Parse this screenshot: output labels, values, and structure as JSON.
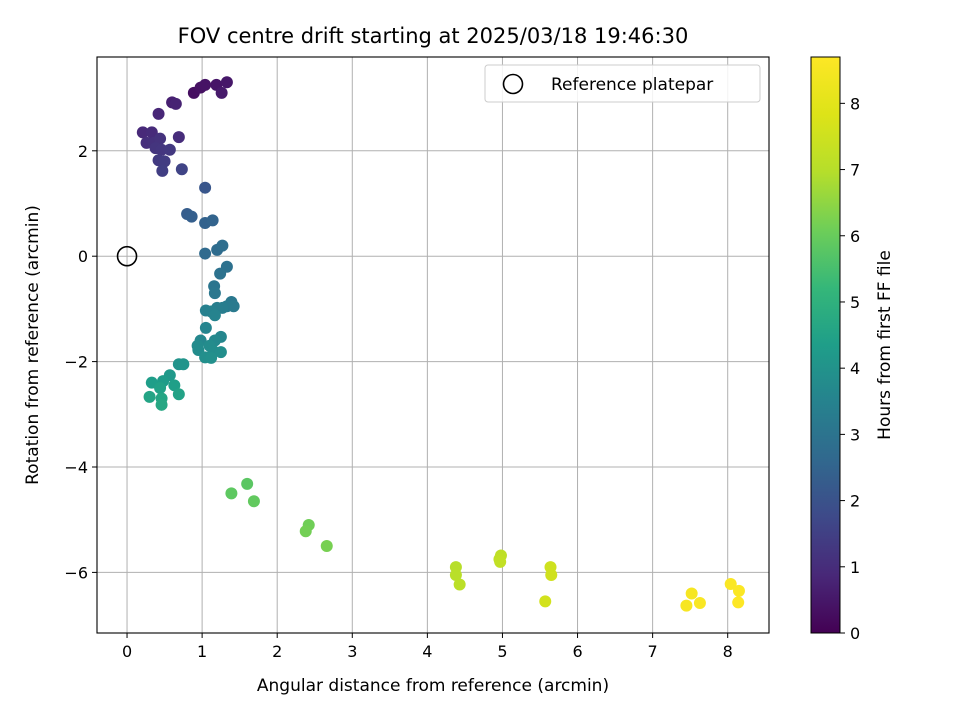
{
  "chart_data": {
    "type": "scatter",
    "title": "FOV centre drift starting at 2025/03/18 19:46:30",
    "xlabel": "Angular distance from reference (arcmin)",
    "ylabel": "Rotation from reference (arcmin)",
    "xlim": [
      -0.4,
      8.55
    ],
    "ylim": [
      -7.15,
      3.78
    ],
    "xticks": [
      0,
      1,
      2,
      3,
      4,
      5,
      6,
      7,
      8
    ],
    "yticks": [
      -6,
      -4,
      -2,
      0,
      2
    ],
    "x_tick_labels": [
      "0",
      "1",
      "2",
      "3",
      "4",
      "5",
      "6",
      "7",
      "8"
    ],
    "y_tick_labels": [
      "−6",
      "−4",
      "−2",
      "0",
      "2"
    ],
    "grid": true,
    "legend": {
      "placement": "upper-right",
      "entries": [
        "Reference platepar"
      ]
    },
    "reference_point": {
      "label": "Reference platepar",
      "x": 0,
      "y": 0
    },
    "colorbar": {
      "label": "Hours from first FF file",
      "colormap": "viridis",
      "range": [
        0,
        8.7
      ],
      "ticks": [
        0,
        1,
        2,
        3,
        4,
        5,
        6,
        7,
        8
      ],
      "tick_labels": [
        "0",
        "1",
        "2",
        "3",
        "4",
        "5",
        "6",
        "7",
        "8"
      ]
    },
    "points": [
      {
        "x": 0.89,
        "y": 3.1,
        "h": 0.3
      },
      {
        "x": 0.98,
        "y": 3.2,
        "h": 0.35
      },
      {
        "x": 1.04,
        "y": 3.25,
        "h": 0.4
      },
      {
        "x": 1.19,
        "y": 3.25,
        "h": 0.45
      },
      {
        "x": 1.33,
        "y": 3.3,
        "h": 0.5
      },
      {
        "x": 1.26,
        "y": 3.1,
        "h": 0.55
      },
      {
        "x": 0.6,
        "y": 2.92,
        "h": 0.7
      },
      {
        "x": 0.65,
        "y": 2.89,
        "h": 0.75
      },
      {
        "x": 0.42,
        "y": 2.7,
        "h": 0.85
      },
      {
        "x": 0.21,
        "y": 2.35,
        "h": 0.9
      },
      {
        "x": 0.33,
        "y": 2.35,
        "h": 0.95
      },
      {
        "x": 0.69,
        "y": 2.26,
        "h": 1.0
      },
      {
        "x": 0.26,
        "y": 2.15,
        "h": 1.05
      },
      {
        "x": 0.35,
        "y": 2.15,
        "h": 1.1
      },
      {
        "x": 0.44,
        "y": 2.23,
        "h": 1.15
      },
      {
        "x": 0.38,
        "y": 2.05,
        "h": 1.2
      },
      {
        "x": 0.46,
        "y": 2.02,
        "h": 1.25
      },
      {
        "x": 0.57,
        "y": 2.02,
        "h": 1.3
      },
      {
        "x": 0.42,
        "y": 1.82,
        "h": 1.35
      },
      {
        "x": 0.5,
        "y": 1.8,
        "h": 1.4
      },
      {
        "x": 0.47,
        "y": 1.62,
        "h": 1.45
      },
      {
        "x": 0.73,
        "y": 1.65,
        "h": 1.6
      },
      {
        "x": 1.04,
        "y": 1.3,
        "h": 2.1
      },
      {
        "x": 0.8,
        "y": 0.8,
        "h": 2.3
      },
      {
        "x": 0.86,
        "y": 0.75,
        "h": 2.35
      },
      {
        "x": 1.04,
        "y": 0.63,
        "h": 2.45
      },
      {
        "x": 1.14,
        "y": 0.68,
        "h": 2.5
      },
      {
        "x": 1.04,
        "y": 0.05,
        "h": 2.7
      },
      {
        "x": 1.2,
        "y": 0.12,
        "h": 2.75
      },
      {
        "x": 1.27,
        "y": 0.2,
        "h": 2.8
      },
      {
        "x": 1.33,
        "y": -0.2,
        "h": 2.9
      },
      {
        "x": 1.24,
        "y": -0.33,
        "h": 2.95
      },
      {
        "x": 1.16,
        "y": -0.57,
        "h": 3.05
      },
      {
        "x": 1.17,
        "y": -0.7,
        "h": 3.1
      },
      {
        "x": 1.39,
        "y": -0.87,
        "h": 3.15
      },
      {
        "x": 1.42,
        "y": -0.95,
        "h": 3.2
      },
      {
        "x": 1.33,
        "y": -0.95,
        "h": 3.25
      },
      {
        "x": 1.27,
        "y": -0.98,
        "h": 3.3
      },
      {
        "x": 1.2,
        "y": -0.98,
        "h": 3.35
      },
      {
        "x": 1.05,
        "y": -1.03,
        "h": 3.4
      },
      {
        "x": 1.12,
        "y": -1.05,
        "h": 3.45
      },
      {
        "x": 1.17,
        "y": -1.12,
        "h": 3.5
      },
      {
        "x": 1.05,
        "y": -1.36,
        "h": 3.55
      },
      {
        "x": 1.25,
        "y": -1.53,
        "h": 3.6
      },
      {
        "x": 0.98,
        "y": -1.6,
        "h": 3.65
      },
      {
        "x": 1.17,
        "y": -1.6,
        "h": 3.7
      },
      {
        "x": 0.94,
        "y": -1.7,
        "h": 3.75
      },
      {
        "x": 1.1,
        "y": -1.7,
        "h": 3.78
      },
      {
        "x": 0.95,
        "y": -1.78,
        "h": 3.8
      },
      {
        "x": 1.15,
        "y": -1.8,
        "h": 3.82
      },
      {
        "x": 1.25,
        "y": -1.82,
        "h": 3.85
      },
      {
        "x": 1.04,
        "y": -1.92,
        "h": 3.88
      },
      {
        "x": 1.12,
        "y": -1.93,
        "h": 3.9
      },
      {
        "x": 0.69,
        "y": -2.05,
        "h": 4.0
      },
      {
        "x": 0.75,
        "y": -2.05,
        "h": 4.05
      },
      {
        "x": 0.57,
        "y": -2.26,
        "h": 4.2
      },
      {
        "x": 0.48,
        "y": -2.37,
        "h": 4.3
      },
      {
        "x": 0.33,
        "y": -2.4,
        "h": 4.35
      },
      {
        "x": 0.63,
        "y": -2.45,
        "h": 4.4
      },
      {
        "x": 0.44,
        "y": -2.5,
        "h": 4.45
      },
      {
        "x": 0.69,
        "y": -2.62,
        "h": 4.5
      },
      {
        "x": 0.3,
        "y": -2.67,
        "h": 4.55
      },
      {
        "x": 0.46,
        "y": -2.7,
        "h": 4.6
      },
      {
        "x": 0.46,
        "y": -2.82,
        "h": 4.65
      },
      {
        "x": 1.6,
        "y": -4.32,
        "h": 5.8
      },
      {
        "x": 1.39,
        "y": -4.5,
        "h": 5.85
      },
      {
        "x": 1.69,
        "y": -4.65,
        "h": 5.9
      },
      {
        "x": 2.42,
        "y": -5.1,
        "h": 6.1
      },
      {
        "x": 2.38,
        "y": -5.22,
        "h": 6.15
      },
      {
        "x": 2.66,
        "y": -5.5,
        "h": 6.2
      },
      {
        "x": 4.38,
        "y": -5.9,
        "h": 7.0
      },
      {
        "x": 4.38,
        "y": -6.05,
        "h": 7.05
      },
      {
        "x": 4.43,
        "y": -6.23,
        "h": 7.1
      },
      {
        "x": 4.98,
        "y": -5.68,
        "h": 7.15
      },
      {
        "x": 4.96,
        "y": -5.75,
        "h": 7.2
      },
      {
        "x": 4.97,
        "y": -5.8,
        "h": 7.25
      },
      {
        "x": 5.64,
        "y": -5.9,
        "h": 7.5
      },
      {
        "x": 5.65,
        "y": -6.05,
        "h": 7.55
      },
      {
        "x": 5.57,
        "y": -6.55,
        "h": 7.6
      },
      {
        "x": 7.52,
        "y": -6.4,
        "h": 8.5
      },
      {
        "x": 7.45,
        "y": -6.63,
        "h": 8.55
      },
      {
        "x": 7.63,
        "y": -6.58,
        "h": 8.6
      },
      {
        "x": 8.04,
        "y": -6.22,
        "h": 8.62
      },
      {
        "x": 8.15,
        "y": -6.35,
        "h": 8.65
      },
      {
        "x": 8.14,
        "y": -6.57,
        "h": 8.7
      }
    ]
  }
}
